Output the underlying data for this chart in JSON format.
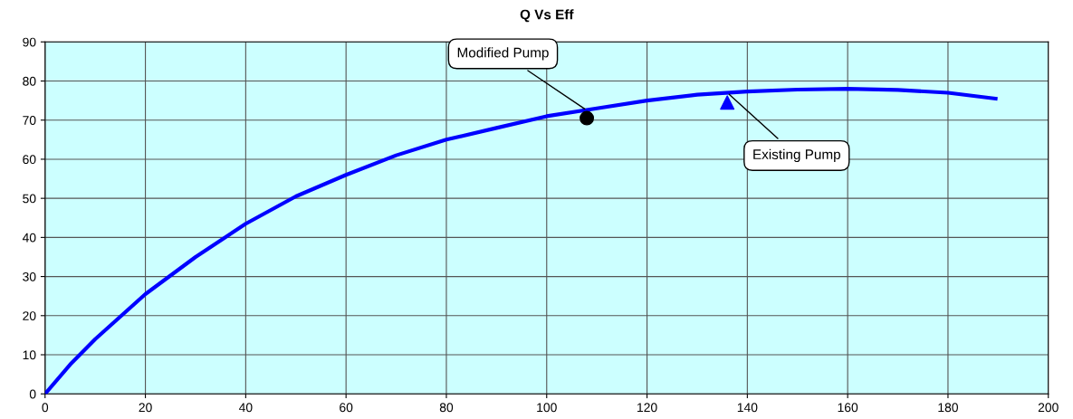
{
  "chart_data": {
    "type": "line",
    "title": "Q Vs Eff",
    "xlim": [
      0,
      200
    ],
    "ylim": [
      0,
      90
    ],
    "xticks": [
      0,
      20,
      40,
      60,
      80,
      100,
      120,
      140,
      160,
      180,
      200
    ],
    "yticks": [
      0,
      10,
      20,
      30,
      40,
      50,
      60,
      70,
      80,
      90
    ],
    "grid": true,
    "legend": false,
    "series": [
      {
        "color": "#0000ff",
        "marker": "none",
        "x": [
          0,
          5,
          10,
          20,
          30,
          40,
          50,
          60,
          70,
          80,
          90,
          100,
          110,
          120,
          130,
          140,
          150,
          160,
          170,
          180,
          189.5
        ],
        "values": [
          0,
          7.5,
          14,
          25.5,
          35,
          43.5,
          50.5,
          56,
          61,
          65,
          68,
          71,
          73,
          75,
          76.5,
          77.3,
          77.8,
          78,
          77.7,
          77,
          75.5
        ]
      },
      {
        "type": "scatter",
        "color": "#000000",
        "marker": "circle",
        "x": [
          108
        ],
        "values": [
          70.5
        ]
      },
      {
        "type": "scatter",
        "color": "#0000ff",
        "marker": "triangle",
        "x": [
          136
        ],
        "values": [
          74.5
        ]
      }
    ],
    "annotations": [
      {
        "text": "Modified Pump",
        "x": 108,
        "y": 72.5
      },
      {
        "text": "Existing Pump",
        "x": 136,
        "y": 77
      }
    ]
  }
}
